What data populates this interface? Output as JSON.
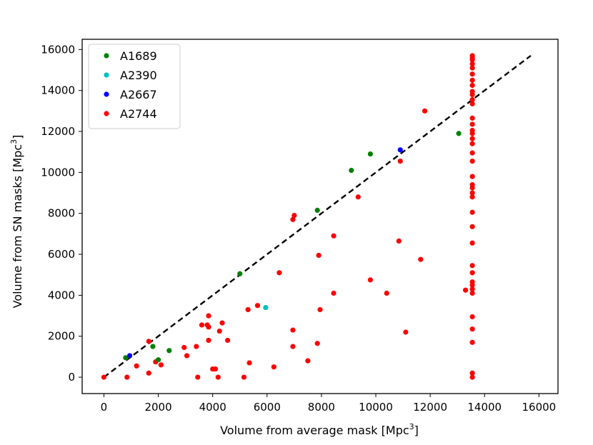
{
  "chart_data": {
    "type": "scatter",
    "xlabel": "Volume from average mask [Mpc",
    "ylabel": "Volume from SN masks [Mpc",
    "label_unit_exponent": "3",
    "label_close": "]",
    "xlim": [
      -800,
      16700
    ],
    "ylim": [
      -800,
      16500
    ],
    "xticks": [
      0,
      2000,
      4000,
      6000,
      8000,
      10000,
      12000,
      14000,
      16000
    ],
    "yticks": [
      0,
      2000,
      4000,
      6000,
      8000,
      10000,
      12000,
      14000,
      16000
    ],
    "xtick_labels": [
      "0",
      "2000",
      "4000",
      "6000",
      "8000",
      "10000",
      "12000",
      "14000",
      "16000"
    ],
    "ytick_labels": [
      "0",
      "2000",
      "4000",
      "6000",
      "8000",
      "10000",
      "12000",
      "14000",
      "16000"
    ],
    "legend_position": "upper-left",
    "reference_line": {
      "style": "dashed",
      "color": "#000000",
      "x": [
        0,
        15700
      ],
      "y": [
        0,
        15700
      ]
    },
    "series": [
      {
        "name": "A1689",
        "color": "#008000",
        "points": [
          [
            800,
            950
          ],
          [
            1800,
            1500
          ],
          [
            2000,
            850
          ],
          [
            2400,
            1300
          ],
          [
            5000,
            5050
          ],
          [
            7850,
            8150
          ],
          [
            9100,
            10100
          ],
          [
            9800,
            10900
          ],
          [
            13050,
            11900
          ]
        ]
      },
      {
        "name": "A2390",
        "color": "#00bfbf",
        "points": [
          [
            5950,
            3400
          ]
        ]
      },
      {
        "name": "A2667",
        "color": "#0000ff",
        "points": [
          [
            950,
            1050
          ],
          [
            10900,
            11100
          ]
        ]
      },
      {
        "name": "A2744",
        "color": "#ff0000",
        "points": [
          [
            0,
            0
          ],
          [
            850,
            0
          ],
          [
            1200,
            550
          ],
          [
            1650,
            1750
          ],
          [
            1650,
            200
          ],
          [
            1900,
            750
          ],
          [
            2100,
            600
          ],
          [
            2950,
            1450
          ],
          [
            3050,
            1050
          ],
          [
            3400,
            1500
          ],
          [
            3450,
            0
          ],
          [
            3600,
            2550
          ],
          [
            3800,
            2550
          ],
          [
            3850,
            3000
          ],
          [
            3850,
            2450
          ],
          [
            3850,
            1800
          ],
          [
            4000,
            400
          ],
          [
            4100,
            400
          ],
          [
            4200,
            0
          ],
          [
            4250,
            2250
          ],
          [
            4350,
            2650
          ],
          [
            4550,
            1800
          ],
          [
            5150,
            0
          ],
          [
            5300,
            3300
          ],
          [
            5350,
            700
          ],
          [
            5650,
            3500
          ],
          [
            6250,
            500
          ],
          [
            6450,
            5100
          ],
          [
            6950,
            7700
          ],
          [
            6950,
            2300
          ],
          [
            6950,
            1500
          ],
          [
            7000,
            7900
          ],
          [
            7500,
            800
          ],
          [
            7850,
            1650
          ],
          [
            7900,
            5950
          ],
          [
            7950,
            3300
          ],
          [
            8450,
            4100
          ],
          [
            8450,
            6900
          ],
          [
            9350,
            8800
          ],
          [
            9800,
            4750
          ],
          [
            10400,
            4100
          ],
          [
            10850,
            6650
          ],
          [
            10900,
            10550
          ],
          [
            11100,
            2200
          ],
          [
            11650,
            5750
          ],
          [
            11800,
            13000
          ],
          [
            13300,
            4250
          ],
          [
            13550,
            0
          ],
          [
            13550,
            200
          ],
          [
            13550,
            1700
          ],
          [
            13550,
            2350
          ],
          [
            13550,
            2950
          ],
          [
            13550,
            4100
          ],
          [
            13550,
            4300
          ],
          [
            13550,
            4500
          ],
          [
            13550,
            4650
          ],
          [
            13550,
            5100
          ],
          [
            13550,
            5450
          ],
          [
            13550,
            6550
          ],
          [
            13550,
            7350
          ],
          [
            13550,
            8050
          ],
          [
            13550,
            8800
          ],
          [
            13550,
            9000
          ],
          [
            13550,
            9250
          ],
          [
            13550,
            9400
          ],
          [
            13550,
            9800
          ],
          [
            13550,
            10550
          ],
          [
            13550,
            10950
          ],
          [
            13550,
            11400
          ],
          [
            13550,
            11650
          ],
          [
            13550,
            11900
          ],
          [
            13550,
            12050
          ],
          [
            13550,
            12350
          ],
          [
            13550,
            12650
          ],
          [
            13550,
            13350
          ],
          [
            13550,
            13550
          ],
          [
            13550,
            13800
          ],
          [
            13550,
            13950
          ],
          [
            13550,
            14250
          ],
          [
            13550,
            14500
          ],
          [
            13550,
            14800
          ],
          [
            13550,
            15100
          ],
          [
            13550,
            15300
          ],
          [
            13550,
            15500
          ],
          [
            13550,
            15600
          ],
          [
            13550,
            15700
          ]
        ]
      }
    ]
  }
}
